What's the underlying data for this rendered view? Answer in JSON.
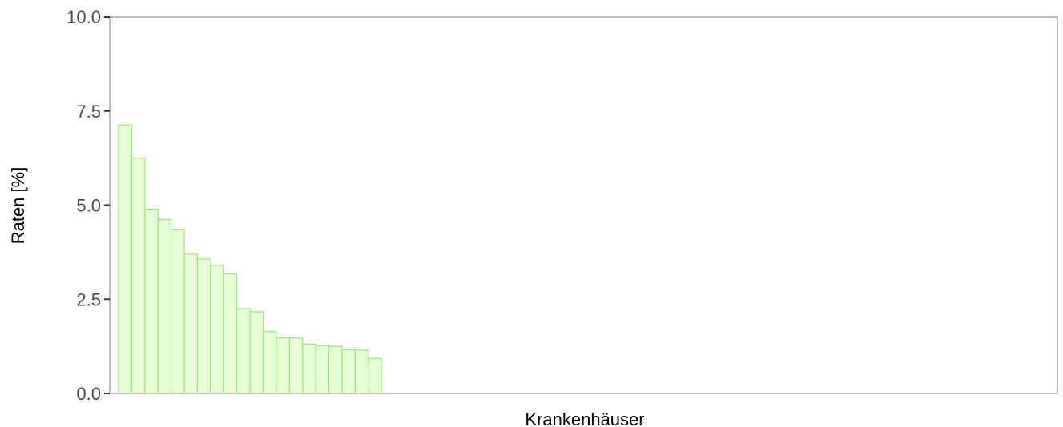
{
  "chart_data": {
    "type": "bar",
    "title": "",
    "xlabel": "Krankenhäuser",
    "ylabel": "Raten  [%]",
    "ylim": [
      0,
      10
    ],
    "yticks": [
      0,
      2.5,
      5,
      7.5,
      10
    ],
    "ytick_labels": [
      "0.0",
      "2.5",
      "5.0",
      "7.5",
      "10.0"
    ],
    "category_count": 71,
    "values": [
      7.13,
      6.25,
      4.89,
      4.62,
      4.34,
      3.7,
      3.57,
      3.4,
      3.17,
      2.25,
      2.17,
      1.64,
      1.47,
      1.47,
      1.31,
      1.27,
      1.25,
      1.16,
      1.15,
      0.93
    ],
    "bar_fill": "#e6ffd6",
    "bar_stroke": "#99ee7a",
    "frame_color": "#bdbdbd",
    "grid": false,
    "legend": "none"
  }
}
